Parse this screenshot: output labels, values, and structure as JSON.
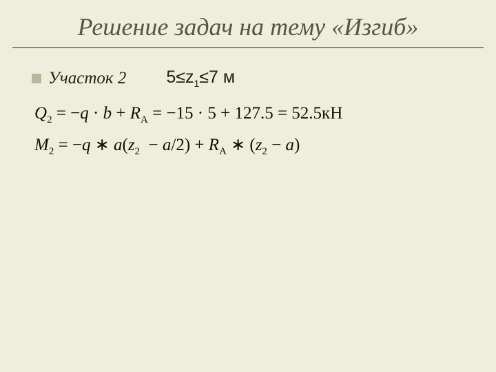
{
  "title": "Решение задач на тему «Изгиб»",
  "bullet": {
    "section_label": "Участок 2",
    "range_label_html": "5≤z<sub>1</sub>≤7 м"
  },
  "equations": {
    "q2_html": "Q<sub>2</sub> <span class='upright'>= −</span>q <span class='upright'>·</span> b <span class='upright'>+</span> R<sub>A</sub> <span class='upright'>= −15 · 5 + 127.5 = 52.5кН</span>",
    "m2_html": "M<sub>2</sub> <span class='upright'>= −</span>q <span class='upright'>∗</span> a<span class='upright'>(</span>z<sub>2</sub>&nbsp; <span class='upright'>−</span> a<span class='upright'>/2) +</span> R<sub>A</sub> <span class='upright'>∗ (</span>z<sub>2</sub> <span class='upright'>−</span> a<span class='upright'>)</span>"
  },
  "styles": {
    "background_color": "#eeeedd",
    "title_color": "#555544",
    "title_fontsize": 36,
    "underline_color": "#888866",
    "bullet_color": "#bab89c",
    "text_color": "#222211",
    "section_fontsize": 25,
    "equation_fontsize": 25
  }
}
